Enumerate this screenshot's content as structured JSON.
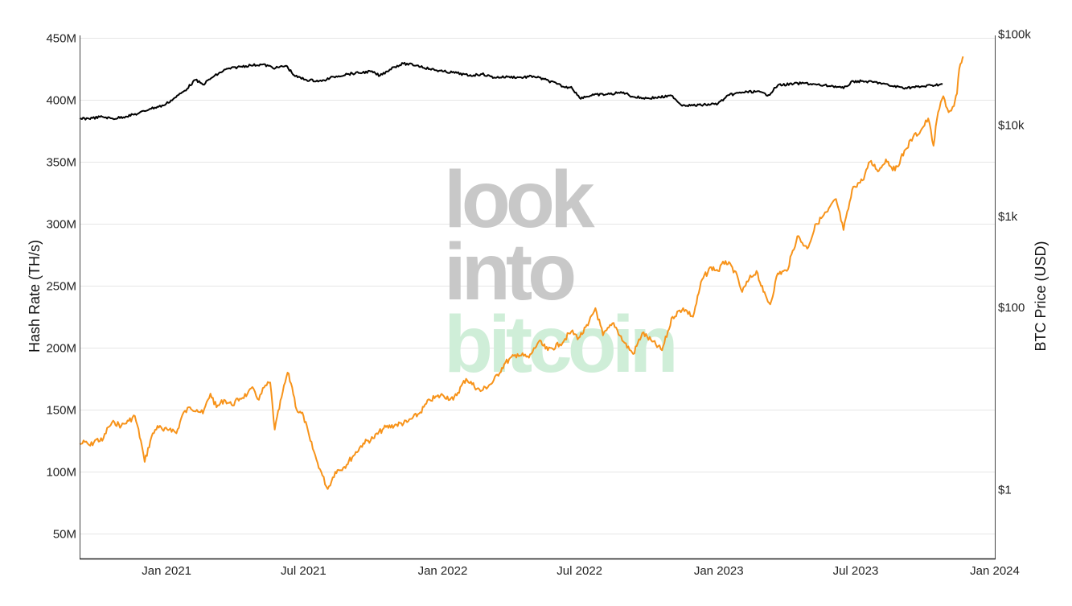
{
  "watermark": {
    "line1": "look",
    "line2": "into",
    "line3": "bitcoin",
    "color_gray": "#c8c8c8",
    "color_green": "#cfeed8"
  },
  "chart_data": {
    "type": "line",
    "x_axis": {
      "type": "date",
      "range": [
        "2020-09-08",
        "2024-01-01"
      ],
      "tick_values": [
        "2021-01-01",
        "2021-07-01",
        "2022-01-01",
        "2022-07-01",
        "2023-01-01",
        "2023-07-01",
        "2024-01-01"
      ],
      "tick_labels": [
        "Jan 2021",
        "Jul 2021",
        "Jan 2022",
        "Jul 2022",
        "Jan 2023",
        "Jul 2023",
        "Jan 2024"
      ]
    },
    "y_left": {
      "label": "Hash Rate (TH/s)",
      "range": [
        30000000,
        452000000
      ],
      "tick_values": [
        50000000,
        100000000,
        150000000,
        200000000,
        250000000,
        300000000,
        350000000,
        400000000,
        450000000
      ],
      "tick_labels": [
        "50M",
        "100M",
        "150M",
        "200M",
        "250M",
        "300M",
        "350M",
        "400M",
        "450M"
      ],
      "grid": true
    },
    "y_right": {
      "label": "BTC Price (USD)",
      "scale": "log",
      "range": [
        0.175,
        97000
      ],
      "tick_values": [
        1,
        100,
        1000,
        10000,
        100000
      ],
      "tick_labels": [
        "$1",
        "$100",
        "$1k",
        "$10k",
        "$100k"
      ]
    },
    "series": [
      {
        "color": "#000000",
        "axis": "right",
        "points": [
          [
            "2020-09-08",
            11700
          ],
          [
            "2020-09-25",
            12000
          ],
          [
            "2020-10-08",
            12400
          ],
          [
            "2020-10-22",
            11800
          ],
          [
            "2020-11-08",
            12500
          ],
          [
            "2020-11-25",
            13500
          ],
          [
            "2020-12-10",
            15200
          ],
          [
            "2020-12-28",
            16500
          ],
          [
            "2021-01-10",
            19500
          ],
          [
            "2021-01-25",
            24000
          ],
          [
            "2021-02-08",
            31500
          ],
          [
            "2021-02-18",
            28000
          ],
          [
            "2021-03-01",
            33000
          ],
          [
            "2021-03-20",
            41000
          ],
          [
            "2021-04-08",
            44000
          ],
          [
            "2021-04-22",
            45500
          ],
          [
            "2021-05-08",
            46500
          ],
          [
            "2021-05-25",
            42500
          ],
          [
            "2021-06-08",
            45000
          ],
          [
            "2021-06-20",
            34500
          ],
          [
            "2021-07-05",
            31500
          ],
          [
            "2021-07-25",
            30500
          ],
          [
            "2021-08-10",
            34000
          ],
          [
            "2021-08-28",
            36500
          ],
          [
            "2021-09-12",
            37500
          ],
          [
            "2021-09-28",
            39000
          ],
          [
            "2021-10-10",
            35000
          ],
          [
            "2021-10-28",
            43500
          ],
          [
            "2021-11-10",
            47500
          ],
          [
            "2021-11-28",
            45500
          ],
          [
            "2021-12-15",
            41500
          ],
          [
            "2022-01-01",
            39000
          ],
          [
            "2022-01-20",
            37500
          ],
          [
            "2022-02-05",
            35000
          ],
          [
            "2022-02-22",
            36500
          ],
          [
            "2022-03-10",
            33500
          ],
          [
            "2022-03-28",
            34000
          ],
          [
            "2022-04-15",
            33500
          ],
          [
            "2022-05-01",
            34500
          ],
          [
            "2022-05-15",
            32000
          ],
          [
            "2022-06-01",
            28500
          ],
          [
            "2022-06-12",
            26000
          ],
          [
            "2022-06-20",
            26500
          ],
          [
            "2022-07-01",
            20000
          ],
          [
            "2022-07-20",
            21500
          ],
          [
            "2022-08-10",
            22000
          ],
          [
            "2022-08-28",
            23000
          ],
          [
            "2022-09-10",
            20500
          ],
          [
            "2022-09-28",
            19800
          ],
          [
            "2022-10-15",
            20300
          ],
          [
            "2022-11-01",
            21000
          ],
          [
            "2022-11-12",
            16800
          ],
          [
            "2022-11-28",
            16500
          ],
          [
            "2022-12-15",
            16800
          ],
          [
            "2022-12-31",
            17300
          ],
          [
            "2023-01-15",
            21500
          ],
          [
            "2023-02-01",
            23000
          ],
          [
            "2023-02-20",
            23500
          ],
          [
            "2023-03-08",
            21500
          ],
          [
            "2023-03-20",
            27500
          ],
          [
            "2023-04-10",
            28500
          ],
          [
            "2023-04-25",
            29000
          ],
          [
            "2023-05-15",
            27500
          ],
          [
            "2023-06-01",
            27000
          ],
          [
            "2023-06-15",
            25500
          ],
          [
            "2023-06-28",
            30500
          ],
          [
            "2023-07-15",
            30200
          ],
          [
            "2023-08-01",
            29300
          ],
          [
            "2023-08-17",
            27000
          ],
          [
            "2023-09-05",
            25800
          ],
          [
            "2023-09-25",
            26500
          ],
          [
            "2023-10-10",
            27500
          ],
          [
            "2023-10-24",
            28300
          ]
        ]
      },
      {
        "color": "#f7931a",
        "axis": "left",
        "points": [
          [
            "2020-09-08",
            122000000
          ],
          [
            "2020-09-15",
            124000000
          ],
          [
            "2020-09-22",
            121000000
          ],
          [
            "2020-09-30",
            126000000
          ],
          [
            "2020-10-08",
            125000000
          ],
          [
            "2020-10-16",
            136000000
          ],
          [
            "2020-10-24",
            140000000
          ],
          [
            "2020-11-02",
            137000000
          ],
          [
            "2020-11-12",
            141000000
          ],
          [
            "2020-11-20",
            145000000
          ],
          [
            "2020-11-28",
            125000000
          ],
          [
            "2020-12-03",
            108000000
          ],
          [
            "2020-12-12",
            128000000
          ],
          [
            "2020-12-20",
            137000000
          ],
          [
            "2020-12-28",
            133000000
          ],
          [
            "2021-01-06",
            135000000
          ],
          [
            "2021-01-14",
            131000000
          ],
          [
            "2021-01-22",
            146000000
          ],
          [
            "2021-02-01",
            152000000
          ],
          [
            "2021-02-10",
            150000000
          ],
          [
            "2021-02-18",
            147000000
          ],
          [
            "2021-02-28",
            163000000
          ],
          [
            "2021-03-08",
            152000000
          ],
          [
            "2021-03-18",
            158000000
          ],
          [
            "2021-03-28",
            154000000
          ],
          [
            "2021-04-08",
            159000000
          ],
          [
            "2021-04-18",
            163000000
          ],
          [
            "2021-04-26",
            167000000
          ],
          [
            "2021-05-03",
            158000000
          ],
          [
            "2021-05-10",
            168000000
          ],
          [
            "2021-05-18",
            172000000
          ],
          [
            "2021-05-24",
            134000000
          ],
          [
            "2021-06-02",
            160000000
          ],
          [
            "2021-06-10",
            180000000
          ],
          [
            "2021-06-16",
            168000000
          ],
          [
            "2021-06-22",
            150000000
          ],
          [
            "2021-07-01",
            145000000
          ],
          [
            "2021-07-10",
            125000000
          ],
          [
            "2021-07-18",
            110000000
          ],
          [
            "2021-07-26",
            97000000
          ],
          [
            "2021-08-02",
            86000000
          ],
          [
            "2021-08-12",
            100000000
          ],
          [
            "2021-08-24",
            104000000
          ],
          [
            "2021-09-05",
            113000000
          ],
          [
            "2021-09-18",
            123000000
          ],
          [
            "2021-10-01",
            127000000
          ],
          [
            "2021-10-15",
            135000000
          ],
          [
            "2021-11-01",
            138000000
          ],
          [
            "2021-11-15",
            140000000
          ],
          [
            "2021-12-01",
            147000000
          ],
          [
            "2021-12-15",
            158000000
          ],
          [
            "2022-01-01",
            162000000
          ],
          [
            "2022-01-15",
            158000000
          ],
          [
            "2022-02-01",
            175000000
          ],
          [
            "2022-02-20",
            165000000
          ],
          [
            "2022-03-08",
            172000000
          ],
          [
            "2022-03-25",
            188000000
          ],
          [
            "2022-04-10",
            195000000
          ],
          [
            "2022-04-25",
            192000000
          ],
          [
            "2022-05-08",
            205000000
          ],
          [
            "2022-05-20",
            198000000
          ],
          [
            "2022-06-05",
            203000000
          ],
          [
            "2022-06-20",
            213000000
          ],
          [
            "2022-06-30",
            208000000
          ],
          [
            "2022-07-12",
            218000000
          ],
          [
            "2022-07-22",
            232000000
          ],
          [
            "2022-08-01",
            210000000
          ],
          [
            "2022-08-15",
            220000000
          ],
          [
            "2022-08-28",
            205000000
          ],
          [
            "2022-09-10",
            195000000
          ],
          [
            "2022-09-22",
            212000000
          ],
          [
            "2022-10-05",
            205000000
          ],
          [
            "2022-10-18",
            198000000
          ],
          [
            "2022-11-01",
            225000000
          ],
          [
            "2022-11-15",
            232000000
          ],
          [
            "2022-11-28",
            225000000
          ],
          [
            "2022-12-10",
            255000000
          ],
          [
            "2022-12-22",
            265000000
          ],
          [
            "2022-12-31",
            262000000
          ],
          [
            "2023-01-10",
            270000000
          ],
          [
            "2023-01-22",
            262000000
          ],
          [
            "2023-02-01",
            245000000
          ],
          [
            "2023-02-10",
            255000000
          ],
          [
            "2023-02-20",
            262000000
          ],
          [
            "2023-03-01",
            245000000
          ],
          [
            "2023-03-10",
            235000000
          ],
          [
            "2023-03-20",
            260000000
          ],
          [
            "2023-04-01",
            262000000
          ],
          [
            "2023-04-15",
            290000000
          ],
          [
            "2023-04-28",
            280000000
          ],
          [
            "2023-05-10",
            300000000
          ],
          [
            "2023-05-25",
            310000000
          ],
          [
            "2023-06-05",
            320000000
          ],
          [
            "2023-06-15",
            295000000
          ],
          [
            "2023-06-28",
            330000000
          ],
          [
            "2023-07-10",
            335000000
          ],
          [
            "2023-07-20",
            350000000
          ],
          [
            "2023-08-01",
            343000000
          ],
          [
            "2023-08-10",
            352000000
          ],
          [
            "2023-08-22",
            343000000
          ],
          [
            "2023-09-05",
            360000000
          ],
          [
            "2023-09-15",
            370000000
          ],
          [
            "2023-09-25",
            375000000
          ],
          [
            "2023-10-05",
            385000000
          ],
          [
            "2023-10-12",
            363000000
          ],
          [
            "2023-10-18",
            390000000
          ],
          [
            "2023-10-25",
            403000000
          ],
          [
            "2023-11-01",
            390000000
          ],
          [
            "2023-11-08",
            395000000
          ],
          [
            "2023-11-12",
            405000000
          ],
          [
            "2023-11-15",
            425000000
          ],
          [
            "2023-11-18",
            430000000
          ],
          [
            "2023-11-20",
            435000000
          ]
        ]
      }
    ],
    "grid": true,
    "legend": "none"
  }
}
